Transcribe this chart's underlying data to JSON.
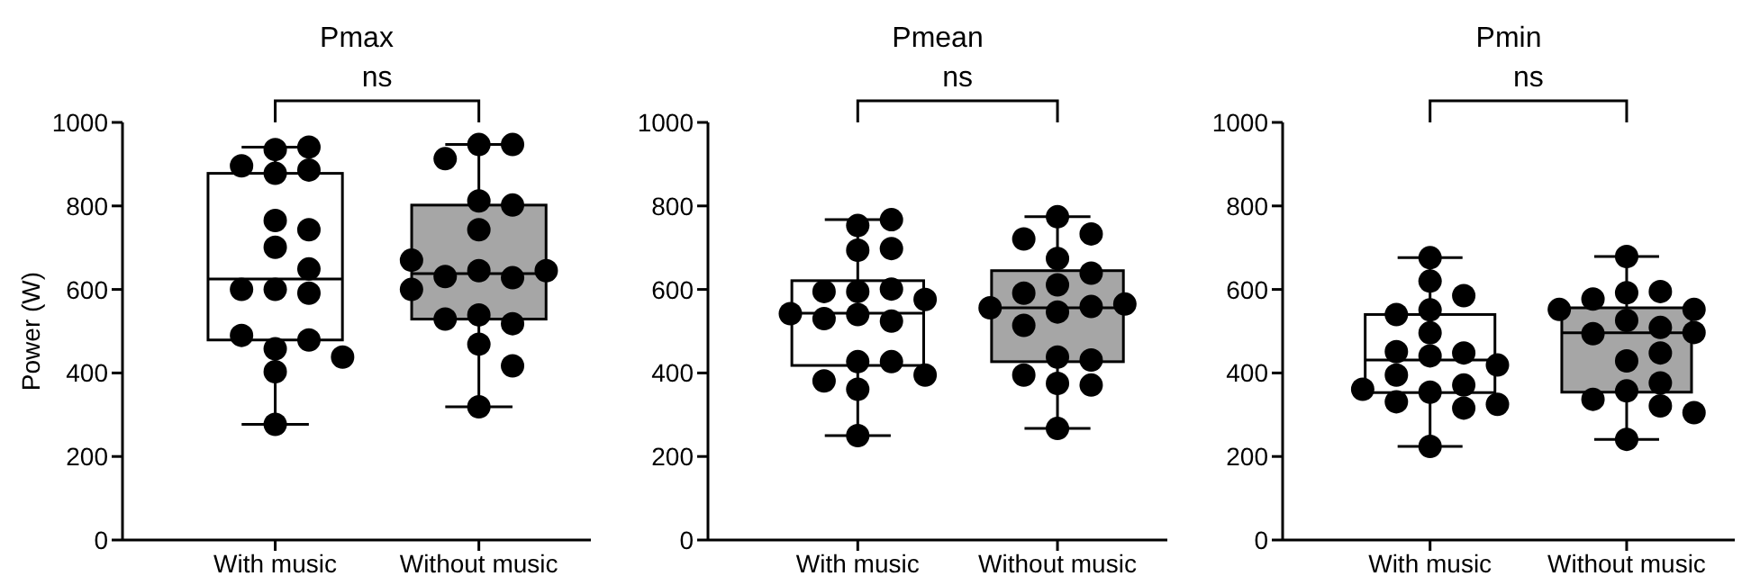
{
  "chart_data": [
    {
      "type": "box",
      "title": "Pmax",
      "ylabel": "Power (W)",
      "categories": [
        "With music",
        "Without music"
      ],
      "ylim": [
        0,
        1000
      ],
      "yticks": [
        0,
        200,
        400,
        600,
        800,
        1000
      ],
      "annotations": [
        "ns"
      ],
      "series": [
        {
          "type": "box",
          "colors": [
            "#ffffff",
            "#a6a6a6"
          ],
          "boxes": [
            {
              "low": 277,
              "q1": 479,
              "median": 625,
              "q3": 878,
              "high": 941
            },
            {
              "low": 319,
              "q1": 529,
              "median": 638,
              "q3": 802,
              "high": 947
            }
          ]
        },
        {
          "type": "scatter",
          "color": "#000000",
          "marker": "circle",
          "x": [
            "With music",
            "With music",
            "With music",
            "With music",
            "With music",
            "With music",
            "With music",
            "With music",
            "With music",
            "With music",
            "With music",
            "With music",
            "With music",
            "With music",
            "With music",
            "With music",
            "With music",
            "With music",
            "Without music",
            "Without music",
            "Without music",
            "Without music",
            "Without music",
            "Without music",
            "Without music",
            "Without music",
            "Without music",
            "Without music",
            "Without music",
            "Without music",
            "Without music",
            "Without music",
            "Without music",
            "Without music",
            "Without music",
            "Without music"
          ],
          "values": [
            935,
            941,
            896,
            878,
            886,
            765,
            743,
            701,
            649,
            600,
            591,
            600,
            458,
            479,
            490,
            438,
            403,
            277,
            947,
            947,
            913,
            812,
            802,
            743,
            645,
            628,
            631,
            645,
            670,
            600,
            539,
            518,
            529,
            469,
            417,
            319
          ]
        }
      ]
    },
    {
      "type": "box",
      "title": "Pmean",
      "categories": [
        "With music",
        "Without music"
      ],
      "ylim": [
        0,
        1000
      ],
      "yticks": [
        0,
        200,
        400,
        600,
        800,
        1000
      ],
      "annotations": [
        "ns"
      ],
      "series": [
        {
          "type": "box",
          "colors": [
            "#ffffff",
            "#a6a6a6"
          ],
          "boxes": [
            {
              "low": 250,
              "q1": 418,
              "median": 543,
              "q3": 621,
              "high": 767
            },
            {
              "low": 267,
              "q1": 427,
              "median": 556,
              "q3": 645,
              "high": 774
            }
          ]
        },
        {
          "type": "scatter",
          "color": "#000000",
          "marker": "circle",
          "x": [
            "With music",
            "With music",
            "With music",
            "With music",
            "With music",
            "With music",
            "With music",
            "With music",
            "With music",
            "With music",
            "With music",
            "With music",
            "With music",
            "With music",
            "With music",
            "With music",
            "With music",
            "With music",
            "Without music",
            "Without music",
            "Without music",
            "Without music",
            "Without music",
            "Without music",
            "Without music",
            "Without music",
            "Without music",
            "Without music",
            "Without music",
            "Without music",
            "Without music",
            "Without music",
            "Without music",
            "Without music",
            "Without music",
            "Without music"
          ],
          "values": [
            753,
            767,
            694,
            698,
            595,
            601,
            595,
            576,
            540,
            524,
            542,
            530,
            427,
            427,
            381,
            361,
            395,
            250,
            774,
            733,
            721,
            674,
            639,
            611,
            591,
            559,
            565,
            546,
            556,
            514,
            438,
            431,
            375,
            371,
            395,
            267
          ]
        }
      ]
    },
    {
      "type": "box",
      "title": "Pmin",
      "categories": [
        "With music",
        "Without music"
      ],
      "ylim": [
        0,
        1000
      ],
      "yticks": [
        0,
        200,
        400,
        600,
        800,
        1000
      ],
      "annotations": [
        "ns"
      ],
      "series": [
        {
          "type": "box",
          "colors": [
            "#ffffff",
            "#a6a6a6"
          ],
          "boxes": [
            {
              "low": 224,
              "q1": 353,
              "median": 431,
              "q3": 540,
              "high": 676
            },
            {
              "low": 241,
              "q1": 354,
              "median": 496,
              "q3": 556,
              "high": 679
            }
          ]
        },
        {
          "type": "scatter",
          "color": "#000000",
          "marker": "circle",
          "x": [
            "With music",
            "With music",
            "With music",
            "With music",
            "With music",
            "With music",
            "With music",
            "With music",
            "With music",
            "With music",
            "With music",
            "With music",
            "With music",
            "With music",
            "With music",
            "With music",
            "With music",
            "With music",
            "Without music",
            "Without music",
            "Without music",
            "Without music",
            "Without music",
            "Without music",
            "Without music",
            "Without music",
            "Without music",
            "Without music",
            "Without music",
            "Without music",
            "Without music",
            "Without music",
            "Without music",
            "Without music",
            "Without music",
            "Without music"
          ],
          "values": [
            676,
            620,
            585,
            551,
            540,
            496,
            441,
            448,
            451,
            395,
            419,
            354,
            371,
            331,
            325,
            361,
            316,
            224,
            679,
            592,
            595,
            577,
            552,
            552,
            526,
            509,
            494,
            497,
            429,
            448,
            376,
            357,
            337,
            321,
            305,
            241
          ]
        }
      ]
    }
  ]
}
